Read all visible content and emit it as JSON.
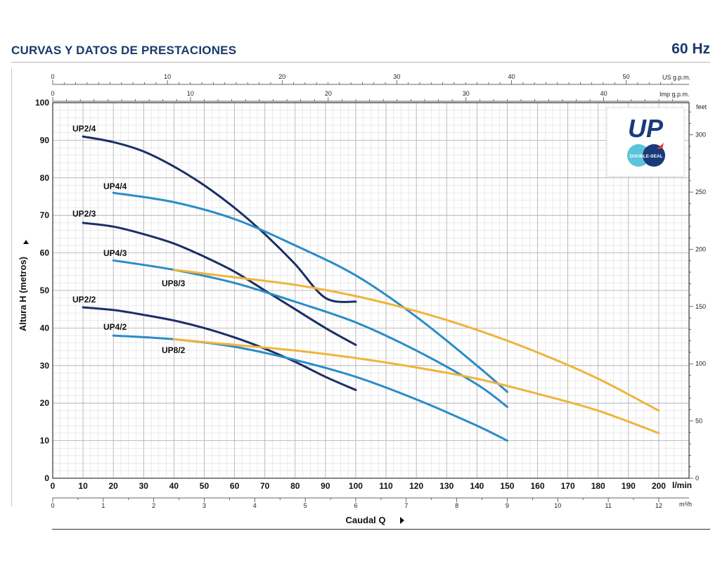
{
  "header": {
    "title": "CURVAS Y DATOS DE PRESTACIONES",
    "frequency": "60 Hz"
  },
  "logo": {
    "brand": "UP",
    "badge": "DOUBLE-SEAL"
  },
  "chart_data": {
    "type": "line",
    "title": "CURVAS Y DATOS DE PRESTACIONES",
    "xlabel": "Caudal Q",
    "ylabel": "Altura H (metros)",
    "xlim": [
      0,
      210
    ],
    "ylim": [
      0,
      100
    ],
    "x_ticks": [
      0,
      10,
      20,
      30,
      40,
      50,
      60,
      70,
      80,
      90,
      100,
      110,
      120,
      130,
      140,
      150,
      160,
      170,
      180,
      190,
      200
    ],
    "y_ticks": [
      0,
      10,
      20,
      30,
      40,
      50,
      60,
      70,
      80,
      90,
      100
    ],
    "x_unit": "l/min",
    "secondary_axes": {
      "m3h": {
        "unit": "m³/h",
        "ticks": [
          0,
          1,
          2,
          3,
          4,
          5,
          6,
          7,
          8,
          9,
          10,
          11,
          12
        ]
      },
      "usgpm": {
        "unit": "US g.p.m.",
        "ticks": [
          0,
          10,
          20,
          30,
          40,
          50
        ]
      },
      "impgpm": {
        "unit": "Imp g.p.m.",
        "ticks": [
          0,
          10,
          20,
          30,
          40
        ]
      },
      "feet": {
        "unit": "feet",
        "ticks": [
          0,
          50,
          100,
          150,
          200,
          250,
          300
        ]
      }
    },
    "series": [
      {
        "name": "UP2/4",
        "color": "#1a2f66",
        "x": [
          10,
          20,
          30,
          40,
          50,
          60,
          70,
          80,
          90,
          100
        ],
        "y": [
          91,
          89.5,
          87,
          83,
          78,
          72,
          65,
          57,
          48,
          47
        ]
      },
      {
        "name": "UP2/3",
        "color": "#1a2f66",
        "x": [
          10,
          20,
          30,
          40,
          50,
          60,
          70,
          80,
          90,
          100
        ],
        "y": [
          68,
          67,
          65,
          62.5,
          59,
          55,
          50,
          45,
          40,
          35.5
        ]
      },
      {
        "name": "UP2/2",
        "color": "#1a2f66",
        "x": [
          10,
          20,
          30,
          40,
          50,
          60,
          70,
          80,
          90,
          100
        ],
        "y": [
          45.5,
          44.8,
          43.5,
          42,
          40,
          37.5,
          34.5,
          31,
          27,
          23.5
        ]
      },
      {
        "name": "UP4/4",
        "color": "#2a8cc8",
        "x": [
          20,
          40,
          60,
          80,
          100,
          120,
          140,
          150
        ],
        "y": [
          76,
          73.5,
          69,
          62,
          54,
          43,
          30,
          23
        ]
      },
      {
        "name": "UP4/3",
        "color": "#2a8cc8",
        "x": [
          20,
          40,
          60,
          80,
          100,
          120,
          140,
          150
        ],
        "y": [
          58,
          55.5,
          52,
          47,
          41.5,
          34,
          25,
          19
        ]
      },
      {
        "name": "UP4/2",
        "color": "#2a8cc8",
        "x": [
          20,
          40,
          60,
          80,
          100,
          120,
          140,
          150
        ],
        "y": [
          38,
          37,
          35,
          31.5,
          27,
          21,
          14,
          10
        ]
      },
      {
        "name": "UP8/3",
        "color": "#f0b43c",
        "x": [
          40,
          60,
          80,
          100,
          120,
          140,
          160,
          180,
          200
        ],
        "y": [
          55.5,
          53.5,
          51.5,
          48.5,
          44.5,
          39.5,
          33.5,
          26.5,
          18
        ]
      },
      {
        "name": "UP8/2",
        "color": "#f0b43c",
        "x": [
          40,
          60,
          80,
          100,
          120,
          140,
          160,
          180,
          200
        ],
        "y": [
          37,
          35.5,
          34,
          32,
          29.5,
          26.5,
          22.5,
          18,
          12
        ]
      }
    ]
  }
}
